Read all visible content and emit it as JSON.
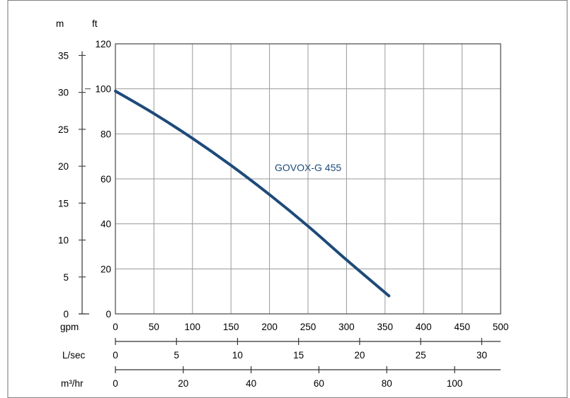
{
  "chart_data": {
    "type": "line",
    "title": "",
    "x": [
      0,
      50,
      100,
      150,
      200,
      250,
      300,
      355
    ],
    "series": [
      {
        "name": "GOVOX-G 455",
        "values": [
          99,
          89,
          78,
          66,
          53,
          39,
          24,
          8
        ]
      }
    ],
    "xlim": [
      0,
      500
    ],
    "ylim": [
      0,
      120
    ],
    "x_ticks": [
      0,
      50,
      100,
      150,
      200,
      250,
      300,
      350,
      400,
      450,
      500
    ],
    "y_ticks": [
      0,
      20,
      40,
      60,
      80,
      100,
      120
    ],
    "xlabel": "gpm",
    "ylabel": "ft",
    "grid": true,
    "secondary_y": {
      "label": "m",
      "ticks": [
        0,
        5,
        10,
        15,
        20,
        25,
        30,
        35
      ]
    },
    "secondary_x_axes": [
      {
        "label": "L/sec",
        "ticks": [
          0,
          5,
          10,
          15,
          20,
          25,
          30
        ]
      },
      {
        "label": "m³/hr",
        "ticks": [
          0,
          20,
          40,
          60,
          80,
          100
        ]
      }
    ],
    "colors": {
      "curve": "#1e4a7a",
      "grid": "#9a9a9a",
      "frame": "#555555"
    }
  }
}
